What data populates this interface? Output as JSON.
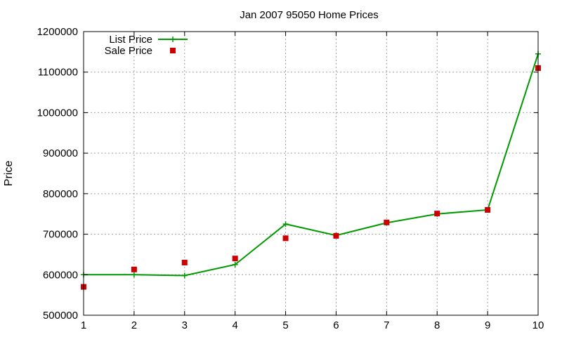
{
  "chart_data": {
    "type": "line",
    "title": "Jan 2007 95050 Home Prices",
    "xlabel": "",
    "ylabel": "Price",
    "x": [
      1,
      2,
      3,
      4,
      5,
      6,
      7,
      8,
      9,
      10
    ],
    "xlim": [
      1,
      10
    ],
    "ylim": [
      500000,
      1200000
    ],
    "xticks": [
      1,
      2,
      3,
      4,
      5,
      6,
      7,
      8,
      9,
      10
    ],
    "yticks": [
      500000,
      600000,
      700000,
      800000,
      900000,
      1000000,
      1100000,
      1200000
    ],
    "grid": true,
    "legend_position": "top-left",
    "series": [
      {
        "name": "List Price",
        "style": "line-with-plus-markers",
        "color": "#009900",
        "values": [
          600000,
          600000,
          598000,
          625000,
          725000,
          697000,
          728000,
          750000,
          760000,
          1145000
        ]
      },
      {
        "name": "Sale Price",
        "style": "square-markers",
        "color": "#cc0000",
        "values": [
          570000,
          613000,
          630000,
          640000,
          690000,
          696000,
          729000,
          751000,
          760000,
          1110000
        ]
      }
    ]
  }
}
